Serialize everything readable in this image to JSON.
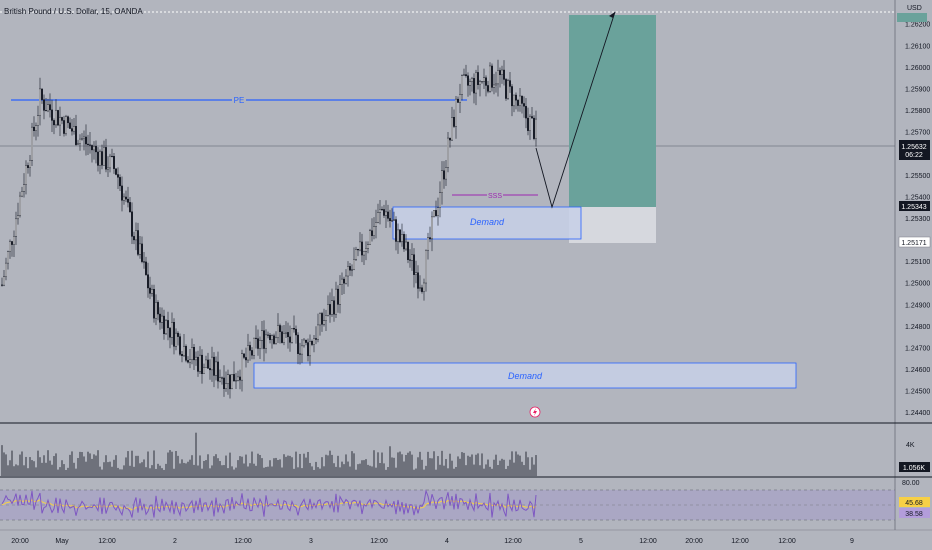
{
  "header": {
    "symbol_title": "British Pound / U.S. Dollar, 15, OANDA",
    "currency": "USD"
  },
  "price_axis": {
    "ticks": [
      "1.26200",
      "1.26100",
      "1.26000",
      "1.25900",
      "1.25800",
      "1.25700",
      "1.25500",
      "1.25400",
      "1.25300",
      "1.25100",
      "1.25000",
      "1.24900",
      "1.24800",
      "1.24700",
      "1.24600",
      "1.24500",
      "1.24400"
    ],
    "tick_values": [
      1.262,
      1.261,
      1.26,
      1.259,
      1.258,
      1.257,
      1.255,
      1.254,
      1.253,
      1.251,
      1.25,
      1.249,
      1.248,
      1.247,
      1.246,
      1.245,
      1.244
    ],
    "current_price": "1.25632",
    "countdown": "06:22",
    "stop_label": "1.25343",
    "lower_label": "1.25171",
    "ylim": [
      1.2435,
      1.2631
    ]
  },
  "time_axis": {
    "ticks": [
      "20:00",
      "May",
      "12:00",
      "2",
      "12:00",
      "3",
      "12:00",
      "4",
      "12:00",
      "5",
      "12:00",
      "20:00",
      "12:00",
      "12:00",
      "9"
    ]
  },
  "annotations": {
    "pe_label": "PE",
    "sss_label": "SSS",
    "demand_upper_label": "Demand",
    "demand_lower_label": "Demand"
  },
  "volume_pane": {
    "scale_label": "4K",
    "last_volume": "1.056K"
  },
  "rsi_pane": {
    "upper_band": "80.00",
    "ma_value": "45.68",
    "rsi_value": "38.58"
  },
  "colors": {
    "background": "#b2b5be",
    "candle": "#131722",
    "pe_line": "#2962ff",
    "sss_line": "#9c27b0",
    "demand_fill": "#c7d0e8",
    "demand_border": "#2962ff",
    "target_zone": "#6aa29b",
    "stop_zone": "#d6d8de",
    "rsi_line": "#7e57c2",
    "rsi_ma": "#f7d046",
    "current_price_bg": "#131722",
    "stop_label_bg": "#131722"
  },
  "chart_data": {
    "type": "candlestick",
    "ylim": [
      1.2435,
      1.2631
    ],
    "trend_path_prices": [
      1.2499,
      1.2585,
      1.2568,
      1.2552,
      1.2488,
      1.2465,
      1.2455,
      1.2478,
      1.247,
      1.25,
      1.2535,
      1.25,
      1.259,
      1.2596,
      1.257
    ]
  }
}
